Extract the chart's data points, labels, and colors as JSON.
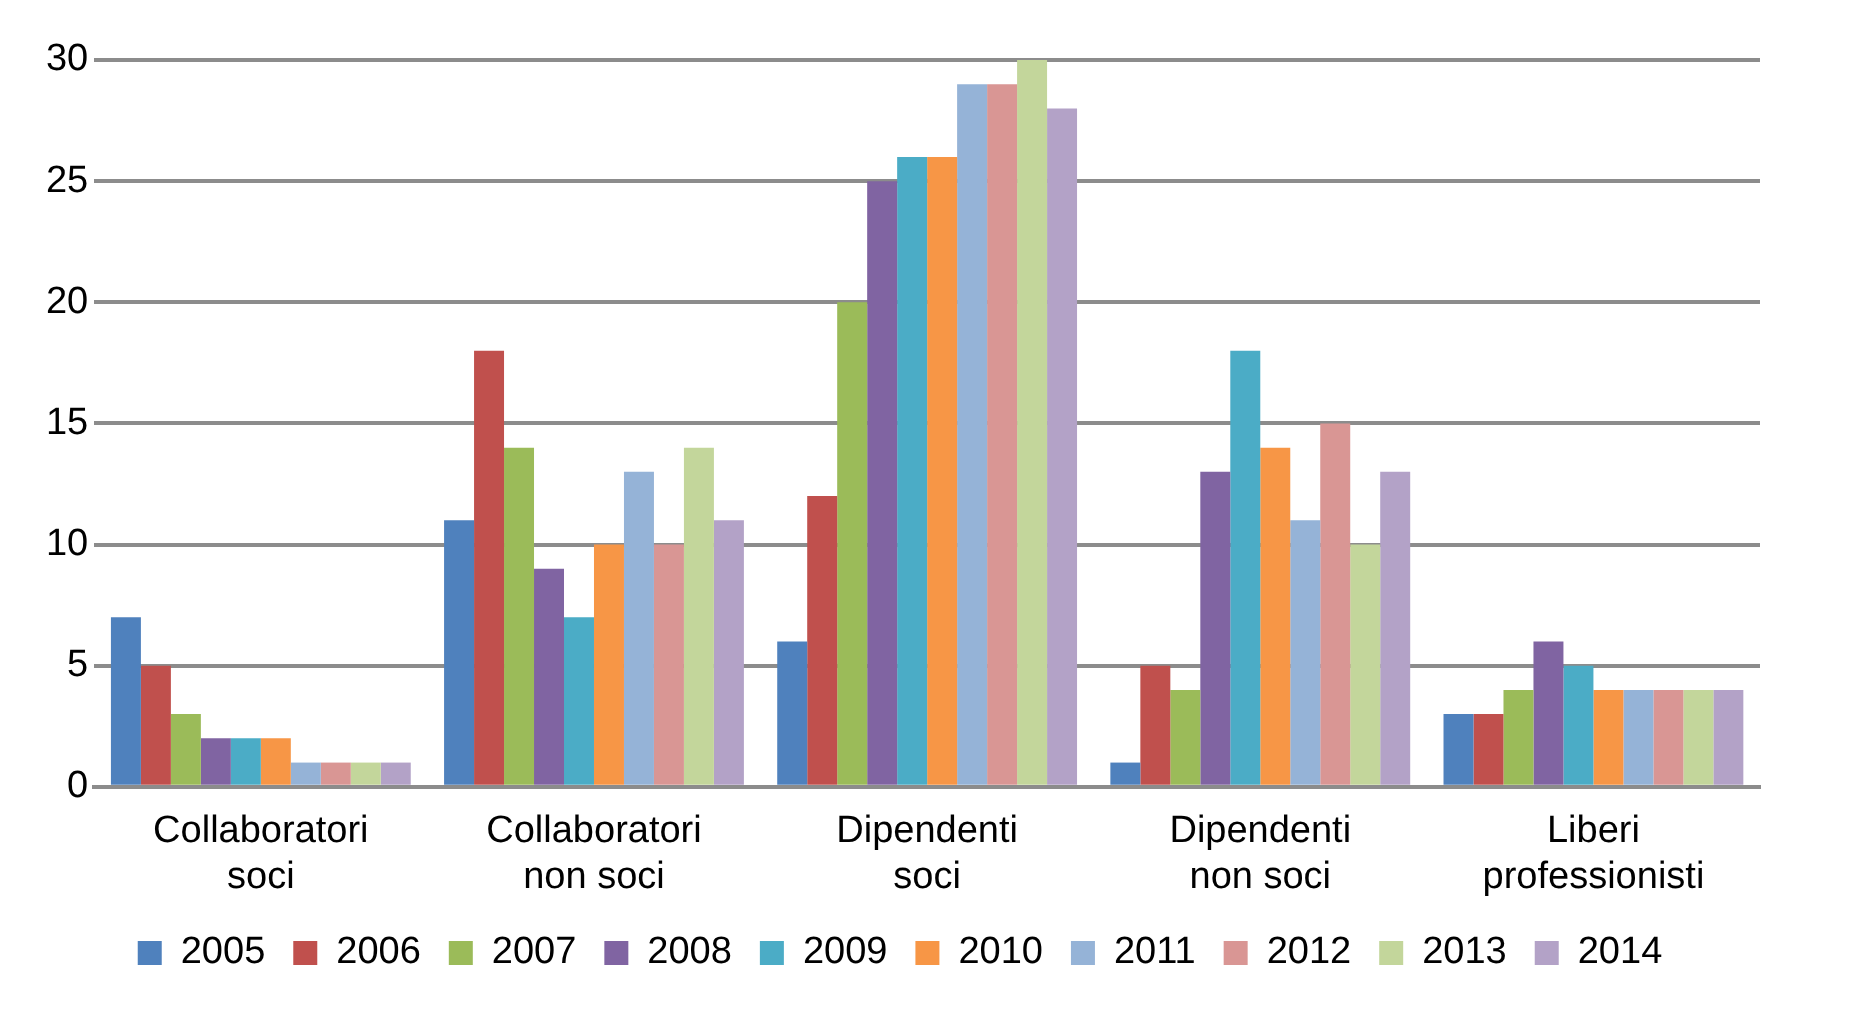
{
  "chart_data": {
    "type": "bar",
    "categories": [
      "Collaboratori soci",
      "Collaboratori non soci",
      "Dipendenti soci",
      "Dipendenti non soci",
      "Liberi professionisti"
    ],
    "series": [
      {
        "name": "2005",
        "color": "#4f81bd",
        "values": [
          7,
          11,
          6,
          1,
          3
        ]
      },
      {
        "name": "2006",
        "color": "#c0504d",
        "values": [
          5,
          18,
          12,
          5,
          3
        ]
      },
      {
        "name": "2007",
        "color": "#9bbb59",
        "values": [
          3,
          14,
          20,
          4,
          4
        ]
      },
      {
        "name": "2008",
        "color": "#8064a2",
        "values": [
          2,
          9,
          25,
          13,
          6
        ]
      },
      {
        "name": "2009",
        "color": "#4bacc6",
        "values": [
          2,
          7,
          26,
          18,
          5
        ]
      },
      {
        "name": "2010",
        "color": "#f79646",
        "values": [
          2,
          10,
          26,
          14,
          4
        ]
      },
      {
        "name": "2011",
        "color": "#95b3d7",
        "values": [
          1,
          13,
          29,
          11,
          4
        ]
      },
      {
        "name": "2012",
        "color": "#d99694",
        "values": [
          1,
          10,
          29,
          15,
          4
        ]
      },
      {
        "name": "2013",
        "color": "#c3d69b",
        "values": [
          1,
          14,
          30,
          10,
          4
        ]
      },
      {
        "name": "2014",
        "color": "#b3a2c7",
        "values": [
          1,
          11,
          28,
          13,
          4
        ]
      }
    ],
    "ylim": [
      0,
      30
    ],
    "yticks": [
      0,
      5,
      10,
      15,
      20,
      25,
      30
    ],
    "grid": "y",
    "legend": "bottom"
  }
}
